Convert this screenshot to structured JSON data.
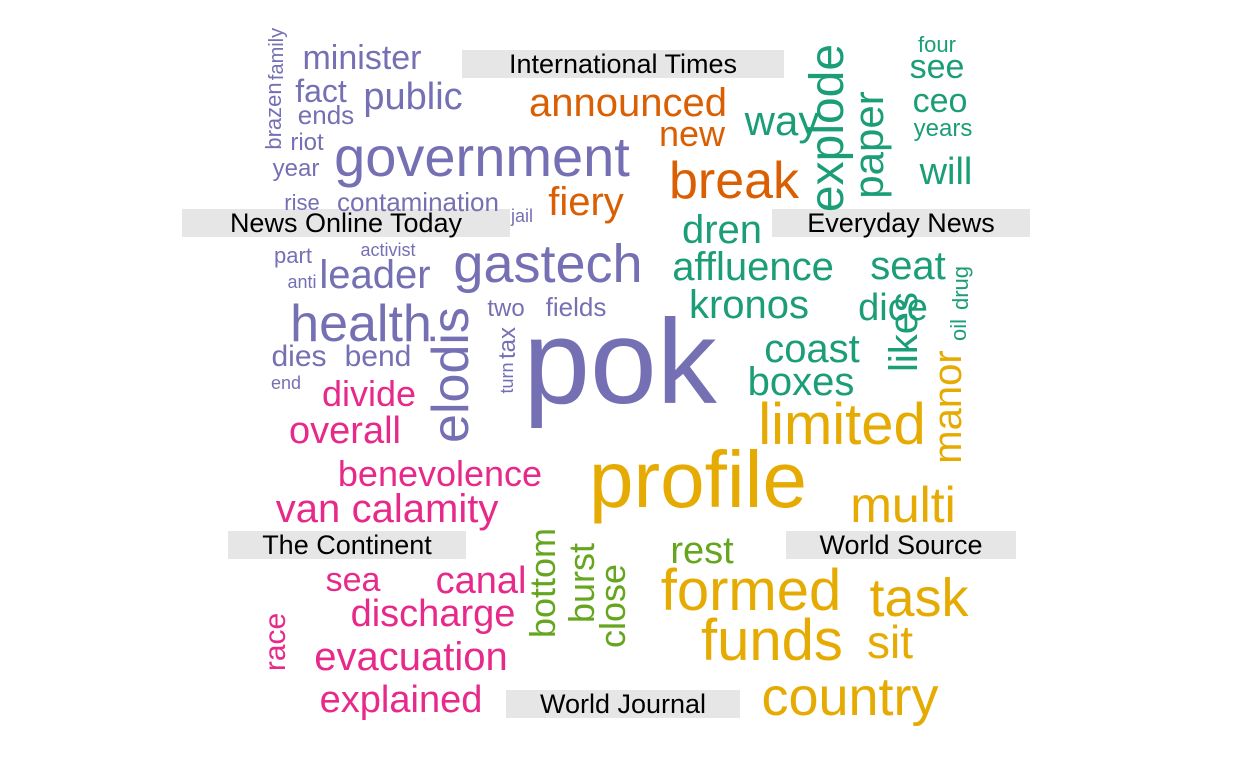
{
  "chart_data": {
    "type": "comparison-wordcloud",
    "groups": [
      {
        "label": "International Times",
        "color": "#d95f02",
        "words": [
          "announced",
          "break",
          "fiery",
          "new"
        ]
      },
      {
        "label": "Everyday News",
        "color": "#1b9e77",
        "words": [
          "four",
          "see",
          "ceo",
          "years",
          "will",
          "way",
          "explode",
          "paper",
          "dren",
          "affluence",
          "seat",
          "kronos",
          "dice",
          "coast",
          "boxes",
          "likes",
          "oil",
          "drug"
        ]
      },
      {
        "label": "News Online Today",
        "color": "#7570b3",
        "words": [
          "family",
          "minister",
          "brazen",
          "fact",
          "ends",
          "public",
          "riot",
          "year",
          "government",
          "rise",
          "contamination",
          "jail",
          "part",
          "activist",
          "anti",
          "leader",
          "gastech",
          "health",
          "two",
          "fields",
          "elodis",
          "tax",
          "turn",
          "dies",
          "bend",
          "end",
          "pok"
        ]
      },
      {
        "label": "World Source",
        "color": "#e6ab02",
        "words": [
          "manor",
          "limited",
          "profile",
          "multi",
          "formed",
          "task",
          "funds",
          "sit",
          "country"
        ]
      },
      {
        "label": "The Continent",
        "color": "#e7298a",
        "words": [
          "divide",
          "overall",
          "benevolence",
          "van",
          "calamity",
          "sea",
          "canal",
          "discharge",
          "race",
          "evacuation",
          "explained"
        ]
      },
      {
        "label": "World Journal",
        "color": "#66a61e",
        "words": [
          "bottom",
          "burst",
          "close",
          "rest"
        ]
      }
    ]
  }
}
